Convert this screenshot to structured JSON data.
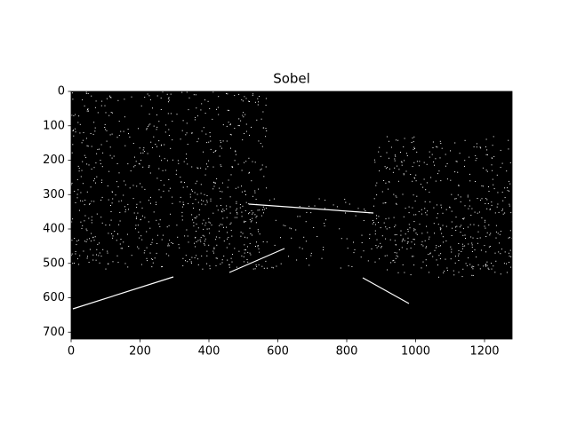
{
  "chart_data": {
    "type": "image",
    "title": "Sobel",
    "xlim": [
      0,
      1280
    ],
    "ylim": [
      720,
      0
    ],
    "xticks": [
      0,
      200,
      400,
      600,
      800,
      1000,
      1200
    ],
    "yticks": [
      0,
      100,
      200,
      300,
      400,
      500,
      600,
      700
    ]
  }
}
